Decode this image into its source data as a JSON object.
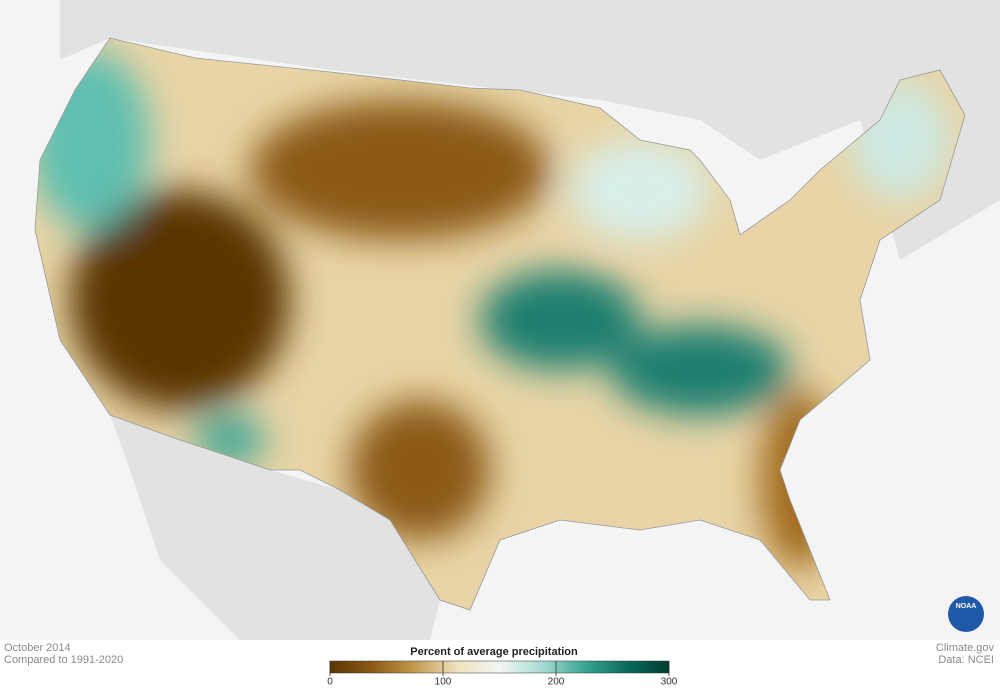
{
  "footer": {
    "date": "October 2014",
    "baseline": "Compared to 1991-2020",
    "credit": "Climate.gov",
    "source": "Data: NCEI"
  },
  "legend": {
    "title": "Percent of average precipitation",
    "range": [
      0,
      300
    ],
    "ticks": [
      0,
      100,
      200,
      300
    ],
    "colors": [
      "#5a3504",
      "#8c5a14",
      "#c39a4f",
      "#f0e2bf",
      "#f2f6f3",
      "#a9dcd3",
      "#3aa594",
      "#0b6b5e",
      "#003c30"
    ]
  },
  "logo": "NOAA"
}
